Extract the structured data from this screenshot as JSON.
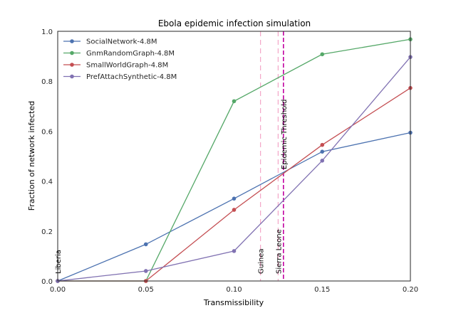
{
  "chart_data": {
    "type": "line",
    "title": "Ebola epidemic infection simulation",
    "xlabel": "Transmissibility",
    "ylabel": "Fraction of network infected",
    "xlim": [
      0.0,
      0.2
    ],
    "ylim": [
      0.0,
      1.0
    ],
    "x_ticks": [
      "0.00",
      "0.05",
      "0.10",
      "0.15",
      "0.20"
    ],
    "y_ticks": [
      "0.0",
      "0.2",
      "0.4",
      "0.6",
      "0.8",
      "1.0"
    ],
    "grid": false,
    "legend_position": "top-left",
    "x": [
      0.0,
      0.05,
      0.1,
      0.15,
      0.2
    ],
    "series": [
      {
        "name": "SocialNetwork-4.8M",
        "color": "#4c72b0",
        "values": [
          0.0,
          0.147,
          0.33,
          0.518,
          0.594
        ]
      },
      {
        "name": "GnmRandomGraph-4.8M",
        "color": "#55a868",
        "values": [
          0.0,
          0.0,
          0.72,
          0.908,
          0.968
        ]
      },
      {
        "name": "SmallWorldGraph-4.8M",
        "color": "#c44e52",
        "values": [
          0.0,
          0.0,
          0.285,
          0.545,
          0.773
        ]
      },
      {
        "name": "PrefAttachSynthetic-4.8M",
        "color": "#8172b2",
        "values": [
          0.0,
          0.04,
          0.12,
          0.482,
          0.897
        ]
      }
    ],
    "annotations": [
      {
        "label": "Liberia",
        "x": 0.0,
        "color": "#f4a6c8",
        "style": "none"
      },
      {
        "label": "Guinea",
        "x": 0.115,
        "color": "#f4a6c8",
        "style": "dashed"
      },
      {
        "label": "Sierra Leone",
        "x": 0.125,
        "color": "#f4a6c8",
        "style": "dashed"
      },
      {
        "label": "Epidemic Threshold",
        "x": 0.128,
        "color": "#c000a0",
        "style": "dashed-bold"
      }
    ]
  }
}
